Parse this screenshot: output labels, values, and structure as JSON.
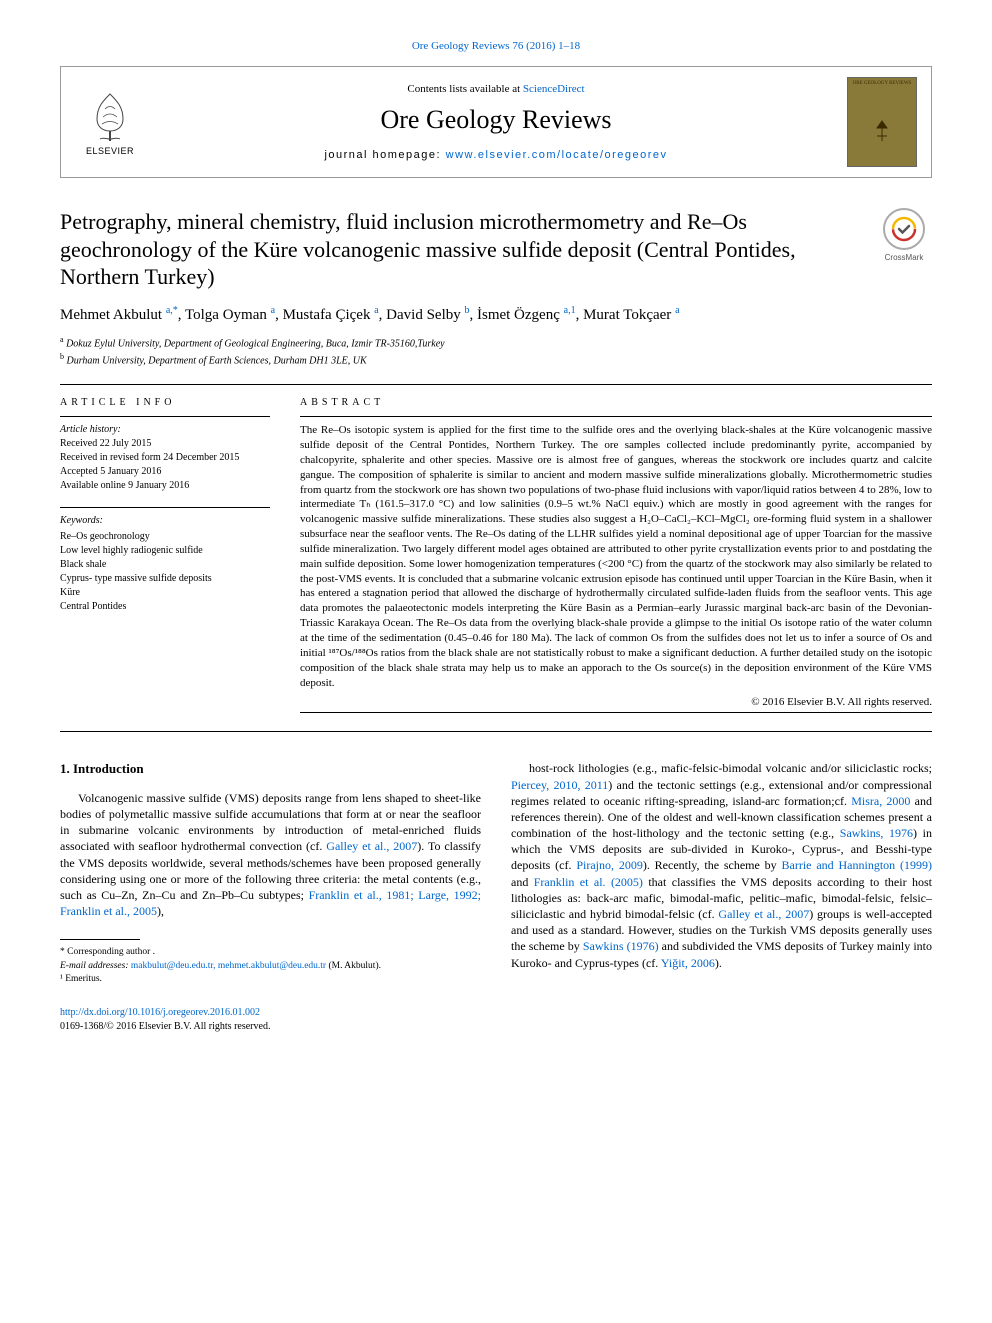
{
  "top_citation_link": "Ore Geology Reviews 76 (2016) 1–18",
  "header": {
    "contents_prefix": "Contents lists available at ",
    "contents_link": "ScienceDirect",
    "journal_name": "Ore Geology Reviews",
    "homepage_prefix": "journal homepage: ",
    "homepage_url": "www.elsevier.com/locate/oregeorev",
    "elsevier_label": "ELSEVIER",
    "cover_text": "ORE GEOLOGY REVIEWS"
  },
  "crossmark_label": "CrossMark",
  "title": "Petrography, mineral chemistry, fluid inclusion microthermometry and Re–Os geochronology of the Küre volcanogenic massive sulfide deposit (Central Pontides, Northern Turkey)",
  "authors_html": "Mehmet Akbulut <sup>a,*</sup>, Tolga Oyman <sup>a</sup>, Mustafa Çiçek <sup>a</sup>, David Selby <sup>b</sup>, İsmet Özgenç <sup>a,1</sup>, Murat Tokçaer <sup>a</sup>",
  "affiliations": [
    {
      "label": "a",
      "text": "Dokuz Eylul University, Department of Geological Engineering, Buca, Izmir TR-35160,Turkey"
    },
    {
      "label": "b",
      "text": "Durham University, Department of Earth Sciences, Durham DH1 3LE, UK"
    }
  ],
  "info": {
    "section_label": "ARTICLE INFO",
    "history_label": "Article history:",
    "history": [
      "Received 22 July 2015",
      "Received in revised form 24 December 2015",
      "Accepted 5 January 2016",
      "Available online 9 January 2016"
    ],
    "keywords_label": "Keywords:",
    "keywords": [
      "Re–Os geochronology",
      "Low level highly radiogenic sulfide",
      "Black shale",
      "Cyprus- type massive sulfide deposits",
      "Küre",
      "Central Pontides"
    ]
  },
  "abstract": {
    "section_label": "ABSTRACT",
    "text": "The Re–Os isotopic system is applied for the first time to the sulfide ores and the overlying black-shales at the Küre volcanogenic massive sulfide deposit of the Central Pontides, Northern Turkey. The ore samples collected include predominantly pyrite, accompanied by chalcopyrite, sphalerite and other species. Massive ore is almost free of gangues, whereas the stockwork ore includes quartz and calcite gangue. The composition of sphalerite is similar to ancient and modern massive sulfide mineralizations globally. Microthermometric studies from quartz from the stockwork ore has shown two populations of two-phase fluid inclusions with vapor/liquid ratios between 4 to 28%, low to intermediate Tₕ (161.5–317.0 °C) and low salinities (0.9–5 wt.% NaCl equiv.) which are mostly in good agreement with the ranges for volcanogenic massive sulfide mineralizations. These studies also suggest a H₂O–CaCl₂–KCl–MgCl₂ ore-forming fluid system in a shallower subsurface near the seafloor vents. The Re–Os dating of the LLHR sulfides yield a nominal depositional age of upper Toarcian for the massive sulfide mineralization. Two largely different model ages obtained are attributed to other pyrite crystallization events prior to and postdating the main sulfide deposition. Some lower homogenization temperatures (<200 °C) from the quartz of the stockwork may also similarly be related to the post-VMS events. It is concluded that a submarine volcanic extrusion episode has continued until upper Toarcian in the Küre Basin, when it has entered a stagnation period that allowed the discharge of hydrothermally circulated sulfide-laden fluids from the seafloor vents. This age data promotes the palaeotectonic models interpreting the Küre Basin as a Permian–early Jurassic marginal back-arc basin of the Devonian-Triassic Karakaya Ocean. The Re–Os data from the overlying black-shale provide a glimpse to the initial Os isotope ratio of the water column at the time of the sedimentation (0.45–0.46 for 180 Ma). The lack of common Os from the sulfides does not let us to infer a source of Os and initial ¹⁸⁷Os/¹⁸⁸Os ratios from the black shale are not statistically robust to make a significant deduction. A further detailed study on the isotopic composition of the black shale strata may help us to make an apporach to the Os source(s) in the deposition environment of the Küre VMS deposit.",
    "copyright": "© 2016 Elsevier B.V. All rights reserved."
  },
  "section1": {
    "heading": "1. Introduction",
    "col1_html": "Volcanogenic massive sulfide (VMS) deposits range from lens shaped to sheet-like bodies of polymetallic massive sulfide accumulations that form at or near the seafloor in submarine volcanic environments by introduction of metal-enriched fluids associated with seafloor hydrothermal convection (cf. <a href='#'>Galley et al., 2007</a>). To classify the VMS deposits worldwide, several methods/schemes have been proposed generally considering using one or more of the following three criteria: the metal contents (e.g., such as Cu–Zn, Zn–Cu and Zn–Pb–Cu subtypes; <a href='#'>Franklin et al., 1981; Large, 1992; Franklin et al., 2005</a>),",
    "col2_html": "host-rock lithologies (e.g., mafic-felsic-bimodal volcanic and/or siliciclastic rocks; <a href='#'>Piercey, 2010, 2011</a>) and the tectonic settings (e.g., extensional and/or compressional regimes related to oceanic rifting-spreading, island-arc formation;cf. <a href='#'>Misra, 2000</a> and references therein). One of the oldest and well-known classification schemes present a combination of the host-lithology and the tectonic setting (e.g., <a href='#'>Sawkins, 1976</a>) in which the VMS deposits are sub-divided in Kuroko-, Cyprus-, and Besshi-type deposits (cf. <a href='#'>Pirajno, 2009</a>). Recently, the scheme by <a href='#'>Barrie and Hannington (1999)</a> and <a href='#'>Franklin et al. (2005)</a> that classifies the VMS deposits according to their host lithologies as: back-arc mafic, bimodal-mafic, pelitic–mafic, bimodal-felsic, felsic–siliciclastic and hybrid bimodal-felsic (cf. <a href='#'>Galley et al., 2007</a>) groups is well-accepted and used as a standard. However, studies on the Turkish VMS deposits generally uses the scheme by <a href='#'>Sawkins (1976)</a> and subdivided the VMS deposits of Turkey mainly into Kuroko- and Cyprus-types (cf. <a href='#'>Yiğit, 2006</a>)."
  },
  "footnotes": {
    "corresponding": "* Corresponding author .",
    "email_label": "E-mail addresses:",
    "emails": "makbulut@deu.edu.tr, mehmet.akbulut@deu.edu.tr",
    "email_attribution": "(M. Akbulut).",
    "emeritus": "¹ Emeritus."
  },
  "doi": {
    "url": "http://dx.doi.org/10.1016/j.oregeorev.2016.01.002",
    "issn_line": "0169-1368/© 2016 Elsevier B.V. All rights reserved."
  },
  "colors": {
    "link": "#0066cc",
    "text": "#000000",
    "cover_bg": "#8a7a3a",
    "border": "#999999"
  },
  "typography": {
    "body_pt": 12,
    "title_pt": 22,
    "journal_pt": 26,
    "abstract_pt": 11,
    "footnote_pt": 9.5
  }
}
